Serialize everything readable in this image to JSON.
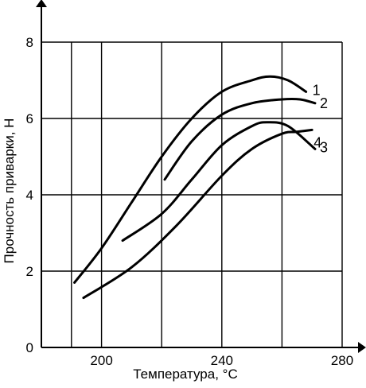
{
  "chart_data": {
    "type": "line",
    "title": "",
    "xlabel": "Температура, °C",
    "ylabel": "Прочность приварки, Н",
    "xlim": [
      180,
      280
    ],
    "ylim": [
      0,
      8
    ],
    "x_ticks": [
      200,
      240,
      280
    ],
    "x_tick_labels": [
      "200",
      "240",
      "280"
    ],
    "y_ticks": [
      0,
      2,
      4,
      6,
      8
    ],
    "y_tick_labels": [
      "0",
      "2",
      "4",
      "6",
      "8"
    ],
    "grid": true,
    "legend": "inline labels at right end of curves",
    "series": [
      {
        "name": "1",
        "points": [
          [
            191,
            1.7
          ],
          [
            200,
            2.6
          ],
          [
            210,
            3.8
          ],
          [
            220,
            5.0
          ],
          [
            230,
            6.0
          ],
          [
            240,
            6.7
          ],
          [
            250,
            7.0
          ],
          [
            256,
            7.1
          ],
          [
            262,
            7.0
          ],
          [
            268,
            6.7
          ]
        ]
      },
      {
        "name": "2",
        "points": [
          [
            221,
            4.4
          ],
          [
            230,
            5.4
          ],
          [
            240,
            6.1
          ],
          [
            250,
            6.4
          ],
          [
            260,
            6.5
          ],
          [
            266,
            6.5
          ],
          [
            271,
            6.4
          ]
        ]
      },
      {
        "name": "3",
        "points": [
          [
            207,
            2.8
          ],
          [
            220,
            3.5
          ],
          [
            230,
            4.4
          ],
          [
            240,
            5.3
          ],
          [
            250,
            5.8
          ],
          [
            255,
            5.9
          ],
          [
            262,
            5.8
          ],
          [
            271,
            5.2
          ]
        ]
      },
      {
        "name": "4",
        "points": [
          [
            194,
            1.3
          ],
          [
            210,
            2.1
          ],
          [
            225,
            3.2
          ],
          [
            240,
            4.5
          ],
          [
            250,
            5.2
          ],
          [
            260,
            5.6
          ],
          [
            265,
            5.65
          ],
          [
            270,
            5.7
          ]
        ]
      }
    ]
  }
}
